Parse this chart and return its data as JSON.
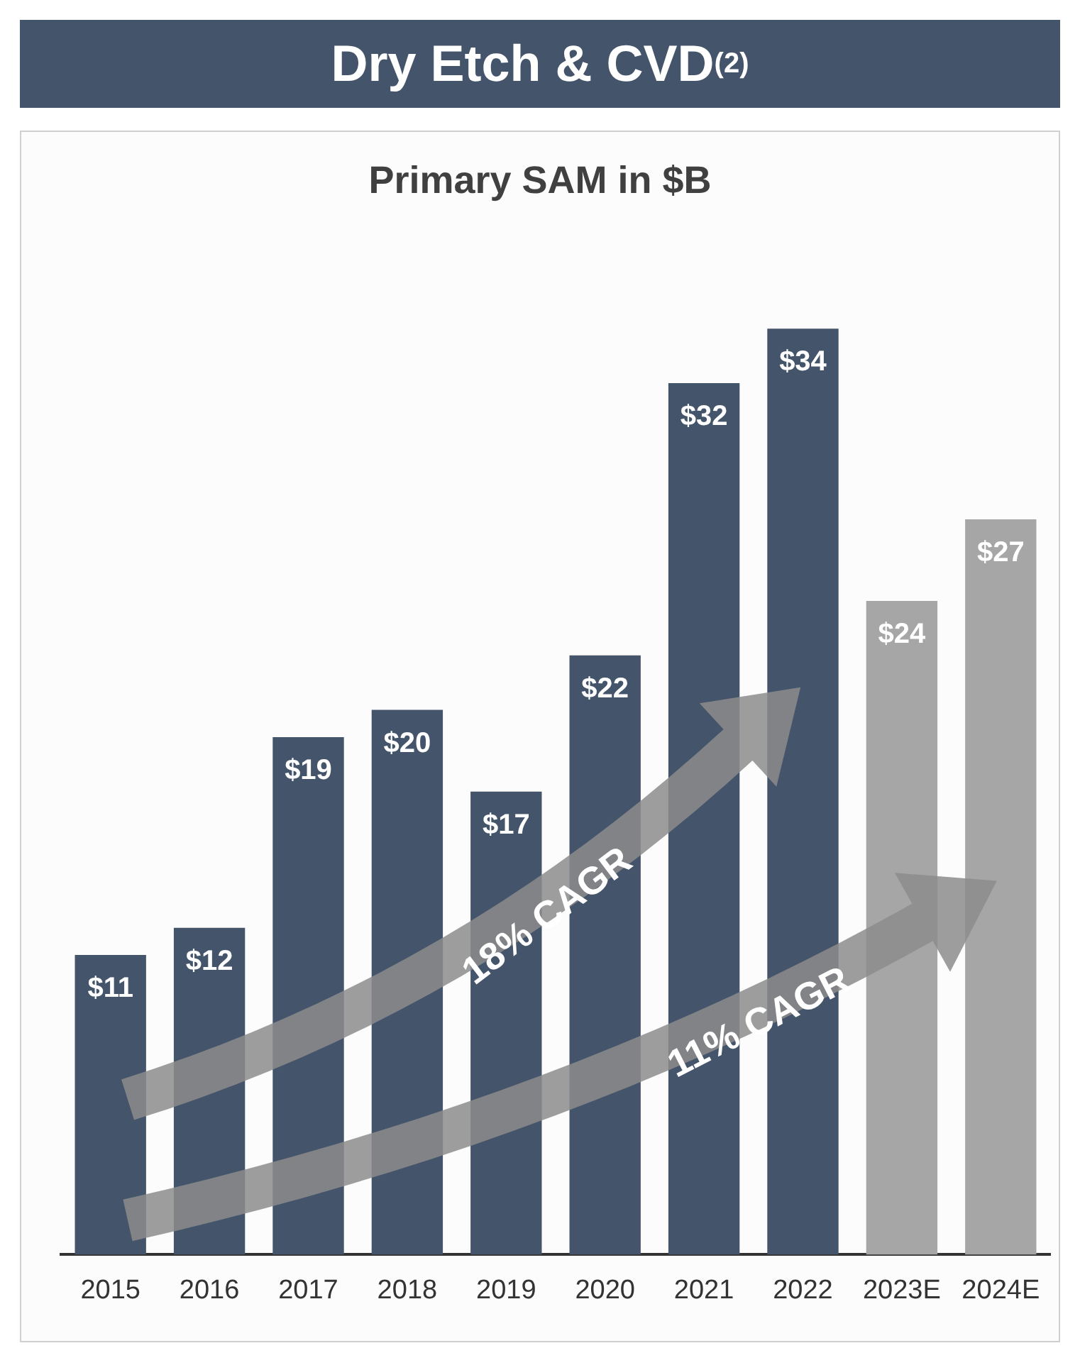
{
  "chart_data": {
    "type": "bar",
    "title": "Dry Etch & CVD$^{(2)}$",
    "subtitle": "Primary SAM in $B",
    "categories": [
      "2015",
      "2016",
      "2017",
      "2018",
      "2019",
      "2020",
      "2021",
      "2022",
      "2023E",
      "2024E"
    ],
    "values": [
      11,
      12,
      19,
      20,
      17,
      22,
      32,
      34,
      24,
      27
    ],
    "colors": [
      "#44546a",
      "#44546a",
      "#44546a",
      "#44546a",
      "#44546a",
      "#44546a",
      "#44546a",
      "#44546a",
      "#a6a6a6",
      "#a6a6a6"
    ],
    "value_labels": [
      "$11",
      "$12",
      "$19",
      "$20",
      "$17",
      "$22",
      "$32",
      "$34",
      "$24",
      "$27"
    ],
    "annotations": [
      "18% CAGR",
      "11% CAGR"
    ],
    "legend": false,
    "grid": false
  }
}
